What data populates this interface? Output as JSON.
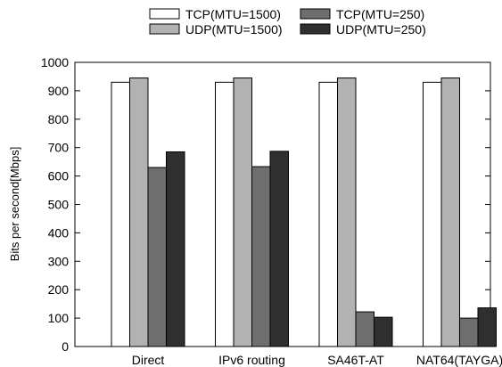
{
  "chart_data": {
    "type": "bar",
    "title": "",
    "xlabel": "",
    "ylabel": "Bits per second[Mbps]",
    "ylim": [
      0,
      1000
    ],
    "yticks": [
      0,
      100,
      200,
      300,
      400,
      500,
      600,
      700,
      800,
      900,
      1000
    ],
    "grid": false,
    "legend_position": "top",
    "categories": [
      "Direct",
      "IPv6 routing",
      "SA46T-AT",
      "NAT64(TAYGA)"
    ],
    "series": [
      {
        "name": "TCP(MTU=1500)",
        "color": "#ffffff",
        "values": [
          930,
          930,
          930,
          930
        ]
      },
      {
        "name": "UDP(MTU=1500)",
        "color": "#b2b2b2",
        "values": [
          945,
          945,
          945,
          945
        ]
      },
      {
        "name": "TCP(MTU=250)",
        "color": "#6e6e6e",
        "values": [
          630,
          633,
          122,
          100
        ]
      },
      {
        "name": "UDP(MTU=250)",
        "color": "#2f2f2f",
        "values": [
          685,
          687,
          103,
          136
        ]
      }
    ]
  }
}
